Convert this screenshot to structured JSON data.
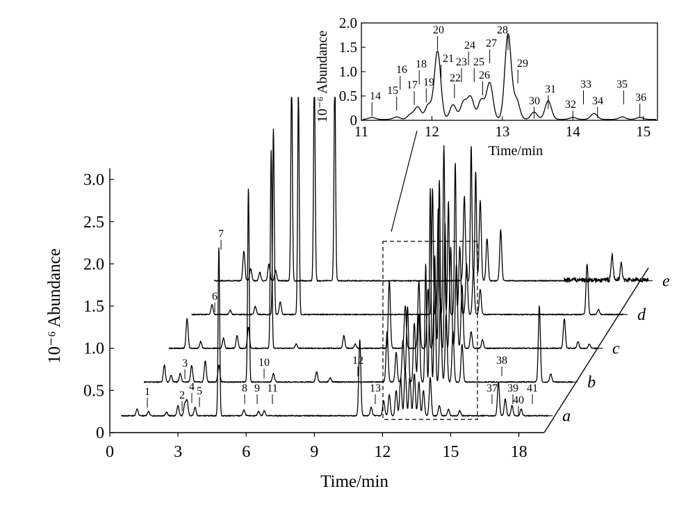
{
  "chart_data": [
    {
      "type": "line",
      "chart_kind": "stacked chromatograms (pseudo-3D offset)",
      "xlabel": "Time/min",
      "ylabel": "10⁻⁶ Abundance",
      "xlim": [
        0,
        18.6
      ],
      "ylim": [
        0,
        3.1
      ],
      "x_ticks": [
        "0",
        "3",
        "6",
        "9",
        "12",
        "15",
        "18"
      ],
      "y_ticks": [
        "0",
        "0.5",
        "1.0",
        "1.5",
        "2.0",
        "2.5",
        "3.0"
      ],
      "grid": false,
      "series": [
        {
          "name": "a",
          "baseline": 0.2,
          "start": 0.5,
          "end": 19.3,
          "peaks": [
            [
              1.2,
              0.08
            ],
            [
              1.7,
              0.05
            ],
            [
              2.5,
              0.04
            ],
            [
              3.0,
              0.12
            ],
            [
              3.3,
              0.14
            ],
            [
              3.4,
              0.18
            ],
            [
              3.75,
              0.1
            ],
            [
              4.8,
              2.0
            ],
            [
              5.9,
              0.07
            ],
            [
              6.55,
              0.05
            ],
            [
              6.8,
              0.06
            ],
            [
              11.0,
              0.9
            ],
            [
              11.5,
              0.1
            ],
            [
              12.05,
              0.18
            ],
            [
              12.3,
              0.25
            ],
            [
              12.6,
              0.3
            ],
            [
              12.8,
              0.45
            ],
            [
              13.0,
              0.55
            ],
            [
              13.2,
              0.45
            ],
            [
              13.4,
              0.5
            ],
            [
              13.6,
              0.4
            ],
            [
              13.8,
              0.3
            ],
            [
              14.1,
              0.45
            ],
            [
              14.5,
              0.12
            ],
            [
              14.9,
              0.08
            ],
            [
              15.4,
              0.06
            ],
            [
              17.1,
              0.4
            ],
            [
              17.4,
              0.2
            ],
            [
              17.7,
              0.12
            ],
            [
              18.1,
              0.08
            ]
          ]
        },
        {
          "name": "b",
          "baseline": 0.6,
          "start": 1.5,
          "end": 20.4,
          "peaks": [
            [
              2.4,
              0.2
            ],
            [
              2.7,
              0.08
            ],
            [
              3.1,
              0.1
            ],
            [
              3.6,
              0.2
            ],
            [
              4.2,
              0.25
            ],
            [
              4.8,
              0.2
            ],
            [
              6.1,
              2.3
            ],
            [
              7.2,
              0.1
            ],
            [
              9.1,
              0.12
            ],
            [
              9.7,
              0.05
            ],
            [
              12.2,
              0.6
            ],
            [
              12.6,
              0.35
            ],
            [
              12.9,
              0.5
            ],
            [
              13.1,
              0.9
            ],
            [
              13.4,
              0.7
            ],
            [
              13.6,
              0.8
            ],
            [
              13.9,
              1.4
            ],
            [
              14.1,
              2.3
            ],
            [
              14.3,
              1.5
            ],
            [
              14.55,
              1.0
            ],
            [
              14.8,
              0.8
            ],
            [
              15.1,
              0.6
            ],
            [
              15.5,
              0.45
            ],
            [
              18.9,
              0.9
            ],
            [
              19.4,
              0.1
            ]
          ]
        },
        {
          "name": "c",
          "baseline": 1.0,
          "start": 2.6,
          "end": 21.5,
          "peaks": [
            [
              3.4,
              0.35
            ],
            [
              4.0,
              0.08
            ],
            [
              5.0,
              0.12
            ],
            [
              5.6,
              0.15
            ],
            [
              6.1,
              0.25
            ],
            [
              7.1,
              2.35
            ],
            [
              8.2,
              0.05
            ],
            [
              10.3,
              0.15
            ],
            [
              10.8,
              0.05
            ],
            [
              12.3,
              0.8
            ],
            [
              13.0,
              0.5
            ],
            [
              13.6,
              0.8
            ],
            [
              14.0,
              0.7
            ],
            [
              14.3,
              0.9
            ],
            [
              14.5,
              2.0
            ],
            [
              14.75,
              1.5
            ],
            [
              15.0,
              1.2
            ],
            [
              15.25,
              1.0
            ],
            [
              15.5,
              0.75
            ],
            [
              15.9,
              0.2
            ],
            [
              16.4,
              0.1
            ],
            [
              20.0,
              0.35
            ],
            [
              20.6,
              0.08
            ],
            [
              21.1,
              0.05
            ]
          ]
        },
        {
          "name": "d",
          "baseline": 1.4,
          "start": 3.6,
          "end": 22.6,
          "peaks": [
            [
              4.5,
              0.12
            ],
            [
              5.3,
              0.05
            ],
            [
              6.4,
              0.1
            ],
            [
              7.2,
              2.2
            ],
            [
              7.5,
              0.15
            ],
            [
              8.3,
              2.65
            ],
            [
              14.2,
              1.5
            ],
            [
              14.45,
              1.25
            ],
            [
              14.7,
              2.0
            ],
            [
              14.9,
              1.35
            ],
            [
              15.2,
              1.8
            ],
            [
              15.4,
              0.8
            ],
            [
              15.7,
              0.6
            ],
            [
              16.0,
              0.5
            ],
            [
              16.3,
              0.3
            ],
            [
              21.0,
              0.6
            ],
            [
              21.5,
              0.06
            ]
          ]
        },
        {
          "name": "e",
          "baseline": 1.8,
          "start": 4.6,
          "end": 23.7,
          "peaks": [
            [
              5.9,
              0.35
            ],
            [
              6.2,
              0.15
            ],
            [
              6.6,
              0.1
            ],
            [
              7.0,
              0.2
            ],
            [
              7.3,
              0.12
            ],
            [
              8.0,
              2.4
            ],
            [
              9.0,
              2.5
            ],
            [
              9.9,
              2.45
            ],
            [
              15.6,
              1.0
            ],
            [
              15.9,
              1.6
            ],
            [
              16.1,
              1.3
            ],
            [
              16.3,
              0.95
            ],
            [
              16.6,
              0.5
            ],
            [
              17.2,
              0.6
            ],
            [
              22.1,
              0.3
            ],
            [
              22.5,
              0.2
            ]
          ]
        }
      ],
      "peak_labels": [
        {
          "label": "1",
          "t": 1.7
        },
        {
          "label": "2",
          "t": 3.3
        },
        {
          "label": "3",
          "t": 3.4
        },
        {
          "label": "4",
          "t": 3.45
        },
        {
          "label": "5",
          "t": 3.75
        },
        {
          "label": "6",
          "t": 4.9
        },
        {
          "label": "7",
          "t": 4.8
        },
        {
          "label": "8",
          "t": 5.9
        },
        {
          "label": "9",
          "t": 6.55
        },
        {
          "label": "10",
          "t": 6.65
        },
        {
          "label": "11",
          "t": 6.8
        },
        {
          "label": "12",
          "t": 11.0
        },
        {
          "label": "13",
          "t": 11.5
        },
        {
          "label": "37",
          "t": 16.9
        },
        {
          "label": "38",
          "t": 17.05
        },
        {
          "label": "39",
          "t": 17.3
        },
        {
          "label": "40",
          "t": 17.6
        },
        {
          "label": "41",
          "t": 18.1
        }
      ]
    },
    {
      "type": "line",
      "chart_kind": "inset zoom of region 11-15 min",
      "xlabel": "Time/min",
      "ylabel": "10⁻⁶ Abundance",
      "xlim": [
        11,
        15.2
      ],
      "ylim": [
        0,
        2.0
      ],
      "x_ticks": [
        "11",
        "12",
        "13",
        "14",
        "15"
      ],
      "y_ticks": [
        "0",
        "0.5",
        "1.0",
        "1.5",
        "2.0"
      ],
      "peaks": [
        [
          11.15,
          0.04
        ],
        [
          11.5,
          0.05
        ],
        [
          11.7,
          0.1
        ],
        [
          11.8,
          0.25
        ],
        [
          11.95,
          0.3
        ],
        [
          12.08,
          1.4
        ],
        [
          12.3,
          0.3
        ],
        [
          12.45,
          0.35
        ],
        [
          12.55,
          0.45
        ],
        [
          12.7,
          0.4
        ],
        [
          12.82,
          0.75
        ],
        [
          13.08,
          1.75
        ],
        [
          13.2,
          0.4
        ],
        [
          13.45,
          0.15
        ],
        [
          13.65,
          0.38
        ],
        [
          14.0,
          0.04
        ],
        [
          14.3,
          0.12
        ],
        [
          14.7,
          0.05
        ],
        [
          14.95,
          0.04
        ]
      ],
      "peak_labels": [
        {
          "label": "14",
          "t": 11.15
        },
        {
          "label": "15",
          "t": 11.5
        },
        {
          "label": "16",
          "t": 11.55
        },
        {
          "label": "17",
          "t": 11.75
        },
        {
          "label": "18",
          "t": 11.82
        },
        {
          "label": "19",
          "t": 11.92
        },
        {
          "label": "20",
          "t": 12.08
        },
        {
          "label": "21",
          "t": 12.13
        },
        {
          "label": "22",
          "t": 12.32
        },
        {
          "label": "23",
          "t": 12.42
        },
        {
          "label": "24",
          "t": 12.52
        },
        {
          "label": "25",
          "t": 12.6
        },
        {
          "label": "26",
          "t": 12.72
        },
        {
          "label": "27",
          "t": 12.82
        },
        {
          "label": "28",
          "t": 13.08
        },
        {
          "label": "29",
          "t": 13.22
        },
        {
          "label": "30",
          "t": 13.45
        },
        {
          "label": "31",
          "t": 13.65
        },
        {
          "label": "32",
          "t": 14.0
        },
        {
          "label": "33",
          "t": 14.15
        },
        {
          "label": "34",
          "t": 14.35
        },
        {
          "label": "35",
          "t": 14.72
        },
        {
          "label": "36",
          "t": 14.95
        }
      ]
    }
  ]
}
